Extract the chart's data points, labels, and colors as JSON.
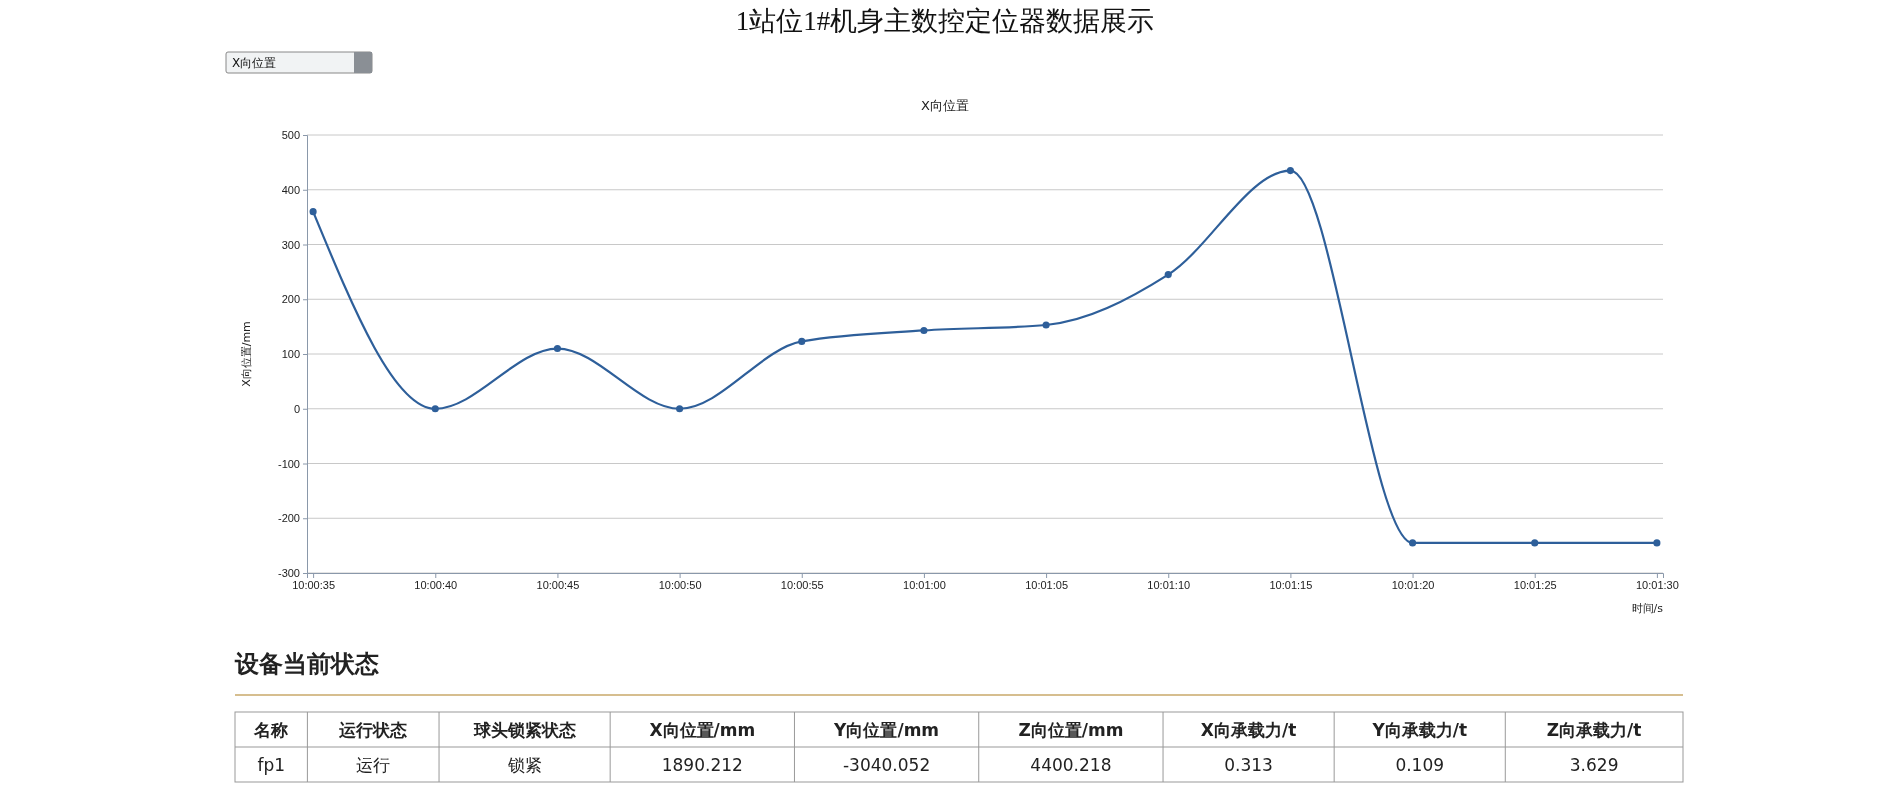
{
  "chart_data": [
    {
      "type": "line",
      "title": "1站位1#机身主数控定位器数据展示",
      "subtitle": "X向位置",
      "annotations": [
        "X向位置"
      ],
      "xlabel": "时间/s",
      "ylabel": "X向位置/mm",
      "categories": [
        "10:00:35",
        "10:00:40",
        "10:00:45",
        "10:00:50",
        "10:00:55",
        "10:01:00",
        "10:01:05",
        "10:01:10",
        "10:01:15",
        "10:01:20",
        "10:01:25",
        "10:01:30"
      ],
      "series": [
        {
          "color": "#2e5f9a",
          "values": [
            360,
            0,
            110,
            0,
            123,
            143,
            153,
            245,
            435,
            -245,
            -245,
            -245
          ]
        }
      ],
      "ylim": [
        -300,
        500
      ],
      "yticks": [
        -300,
        -200,
        -100,
        0,
        100,
        200,
        300,
        400,
        500
      ],
      "grid": "y",
      "marker": "circle",
      "line_style": "solid"
    },
    {
      "type": "other",
      "title": "设备当前状态",
      "categories": [
        "名称",
        "运行状态",
        "球头锁紧状态",
        "X向位置/mm",
        "Y向位置/mm",
        "Z向位置/mm",
        "X向承载力/t",
        "Y向承载力/t",
        "Z向承载力/t"
      ],
      "annotations": [
        "fp1",
        "运行",
        "锁紧",
        "1890.212",
        "-3040.052",
        "4400.218",
        "0.313",
        "0.109",
        "3.629"
      ]
    }
  ]
}
